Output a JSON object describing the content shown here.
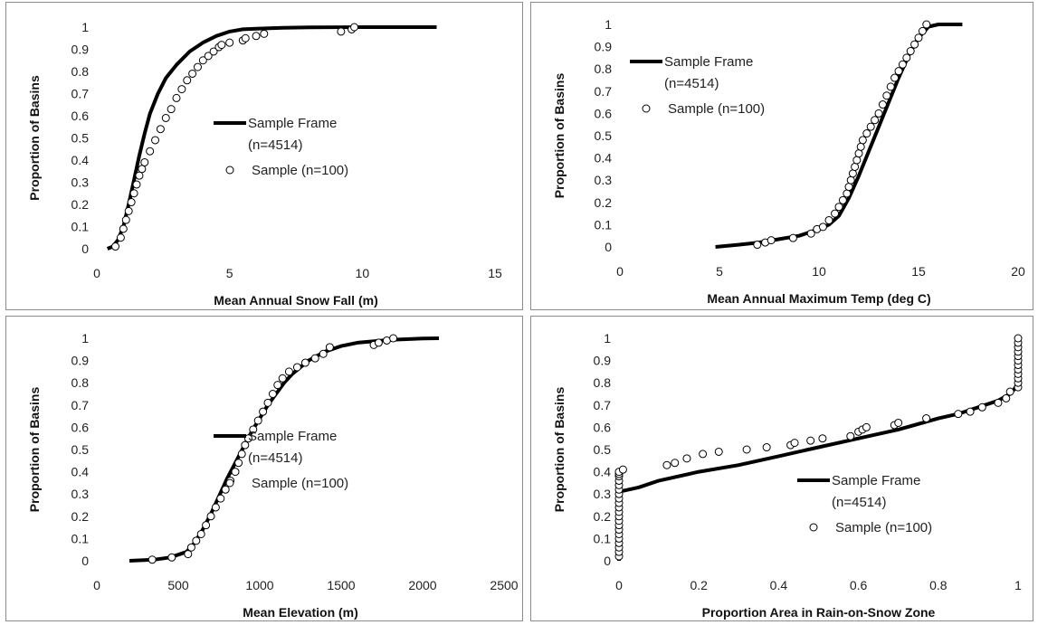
{
  "chart_data": [
    {
      "type": "line",
      "ylabel": "Proportion of Basins",
      "xlabel": "Mean Annual Snow Fall (m)",
      "xlim": [
        0,
        15
      ],
      "ylim": [
        0,
        1
      ],
      "xticks": [
        "0",
        "5",
        "10",
        "15"
      ],
      "yticks": [
        "0",
        "0.1",
        "0.2",
        "0.3",
        "0.4",
        "0.5",
        "0.6",
        "0.7",
        "0.8",
        "0.9",
        "1"
      ],
      "grid": false,
      "legend_position": "right-center",
      "series": [
        {
          "name": "Sample Frame (n=4514)",
          "legend_lines": [
            "Sample Frame",
            "(n=4514)"
          ],
          "style": "line",
          "x": [
            0.4,
            0.6,
            0.8,
            1.0,
            1.2,
            1.4,
            1.6,
            1.8,
            2.0,
            2.3,
            2.6,
            3.0,
            3.5,
            4.0,
            4.5,
            5.0,
            5.5,
            6.0,
            7.0,
            8.0,
            10.0,
            12.8
          ],
          "y": [
            0,
            0.01,
            0.04,
            0.1,
            0.2,
            0.31,
            0.42,
            0.52,
            0.61,
            0.7,
            0.77,
            0.83,
            0.89,
            0.93,
            0.96,
            0.98,
            0.99,
            0.993,
            0.997,
            0.999,
            1.0,
            1.0
          ]
        },
        {
          "name": "Sample (n=100)",
          "legend_lines": [
            "Sample (n=100)"
          ],
          "style": "markers",
          "x": [
            0.7,
            0.9,
            1.0,
            1.1,
            1.2,
            1.3,
            1.4,
            1.5,
            1.6,
            1.7,
            1.8,
            2.0,
            2.2,
            2.4,
            2.6,
            2.8,
            3.0,
            3.2,
            3.4,
            3.6,
            3.8,
            4.0,
            4.2,
            4.4,
            4.6,
            4.7,
            5.0,
            5.5,
            5.6,
            6.0,
            6.3,
            9.2,
            9.6,
            9.7
          ],
          "y": [
            0.01,
            0.05,
            0.09,
            0.13,
            0.17,
            0.21,
            0.25,
            0.29,
            0.33,
            0.36,
            0.39,
            0.44,
            0.49,
            0.54,
            0.59,
            0.63,
            0.68,
            0.72,
            0.76,
            0.79,
            0.82,
            0.85,
            0.87,
            0.89,
            0.91,
            0.92,
            0.93,
            0.94,
            0.95,
            0.96,
            0.97,
            0.98,
            0.99,
            1.0
          ]
        }
      ]
    },
    {
      "type": "line",
      "ylabel": "Proportion of Basins",
      "xlabel": "Mean Annual Maximum Temp (deg C)",
      "xlim": [
        0,
        20
      ],
      "ylim": [
        0,
        1
      ],
      "xticks": [
        "0",
        "5",
        "10",
        "15",
        "20"
      ],
      "yticks": [
        "0",
        "0.1",
        "0.2",
        "0.3",
        "0.4",
        "0.5",
        "0.6",
        "0.7",
        "0.8",
        "0.9",
        "1"
      ],
      "grid": false,
      "legend_position": "top-left",
      "series": [
        {
          "name": "Sample Frame (n=4514)",
          "legend_lines": [
            "Sample Frame",
            "(n=4514)"
          ],
          "style": "line",
          "x": [
            4.8,
            6.0,
            7.0,
            8.0,
            9.0,
            10.0,
            10.5,
            11.0,
            11.5,
            12.0,
            12.5,
            13.0,
            13.5,
            14.0,
            14.5,
            15.0,
            15.5,
            16.0,
            17.2
          ],
          "y": [
            0,
            0.01,
            0.02,
            0.035,
            0.05,
            0.08,
            0.1,
            0.14,
            0.22,
            0.32,
            0.43,
            0.54,
            0.65,
            0.76,
            0.86,
            0.94,
            0.99,
            1.0,
            1.0
          ]
        },
        {
          "name": "Sample (n=100)",
          "legend_lines": [
            "Sample (n=100)"
          ],
          "style": "markers",
          "x": [
            6.9,
            7.3,
            7.6,
            8.7,
            9.6,
            9.9,
            10.2,
            10.5,
            10.8,
            11.0,
            11.2,
            11.4,
            11.5,
            11.6,
            11.7,
            11.8,
            11.9,
            12.0,
            12.1,
            12.2,
            12.4,
            12.6,
            12.8,
            13.0,
            13.2,
            13.4,
            13.6,
            13.8,
            14.0,
            14.2,
            14.4,
            14.6,
            14.8,
            15.0,
            15.2,
            15.4
          ],
          "y": [
            0.01,
            0.02,
            0.03,
            0.04,
            0.06,
            0.08,
            0.09,
            0.12,
            0.15,
            0.18,
            0.21,
            0.24,
            0.27,
            0.3,
            0.33,
            0.36,
            0.39,
            0.42,
            0.45,
            0.48,
            0.51,
            0.54,
            0.57,
            0.6,
            0.64,
            0.68,
            0.72,
            0.76,
            0.79,
            0.82,
            0.85,
            0.88,
            0.91,
            0.94,
            0.97,
            1.0
          ]
        }
      ]
    },
    {
      "type": "line",
      "ylabel": "Proportion of Basins",
      "xlabel": "Mean Elevation (m)",
      "xlim": [
        0,
        2500
      ],
      "ylim": [
        0,
        1
      ],
      "xticks": [
        "0",
        "500",
        "1000",
        "1500",
        "2000",
        "2500"
      ],
      "yticks": [
        "0",
        "0.1",
        "0.2",
        "0.3",
        "0.4",
        "0.5",
        "0.6",
        "0.7",
        "0.8",
        "0.9",
        "1"
      ],
      "grid": false,
      "legend_position": "right-center",
      "series": [
        {
          "name": "Sample Frame (n=4514)",
          "legend_lines": [
            "Sample Frame",
            "(n=4514)"
          ],
          "style": "line",
          "x": [
            200,
            350,
            450,
            550,
            600,
            650,
            700,
            750,
            800,
            850,
            900,
            950,
            1000,
            1050,
            1100,
            1150,
            1200,
            1300,
            1400,
            1500,
            1600,
            1800,
            2000,
            2100
          ],
          "y": [
            0,
            0.005,
            0.015,
            0.04,
            0.08,
            0.14,
            0.21,
            0.29,
            0.37,
            0.44,
            0.51,
            0.58,
            0.64,
            0.7,
            0.75,
            0.8,
            0.84,
            0.9,
            0.94,
            0.965,
            0.98,
            0.993,
            0.999,
            1.0
          ]
        },
        {
          "name": "Sample (n=100)",
          "legend_lines": [
            "Sample (n=100)"
          ],
          "style": "markers",
          "x": [
            340,
            460,
            560,
            580,
            610,
            640,
            670,
            700,
            730,
            760,
            790,
            820,
            850,
            870,
            890,
            910,
            930,
            960,
            990,
            1020,
            1050,
            1080,
            1110,
            1140,
            1180,
            1230,
            1280,
            1340,
            1390,
            1430,
            1700,
            1730,
            1780,
            1820
          ],
          "y": [
            0.005,
            0.015,
            0.03,
            0.06,
            0.09,
            0.12,
            0.16,
            0.2,
            0.24,
            0.28,
            0.32,
            0.36,
            0.4,
            0.44,
            0.48,
            0.52,
            0.55,
            0.59,
            0.63,
            0.67,
            0.71,
            0.75,
            0.79,
            0.82,
            0.85,
            0.87,
            0.89,
            0.91,
            0.93,
            0.96,
            0.97,
            0.98,
            0.99,
            1.0
          ]
        }
      ]
    },
    {
      "type": "line",
      "ylabel": "Proportion of Basins",
      "xlabel": "Proportion Area in Rain-on-Snow Zone",
      "xlim": [
        0,
        1
      ],
      "ylim": [
        0,
        1
      ],
      "xticks": [
        "0",
        "0.2",
        "0.4",
        "0.6",
        "0.8",
        "1"
      ],
      "yticks": [
        "0",
        "0.1",
        "0.2",
        "0.3",
        "0.4",
        "0.5",
        "0.6",
        "0.7",
        "0.8",
        "0.9",
        "1"
      ],
      "grid": false,
      "legend_position": "right-center",
      "series": [
        {
          "name": "Sample Frame (n=4514)",
          "legend_lines": [
            "Sample Frame",
            "(n=4514)"
          ],
          "style": "line",
          "x": [
            0,
            0,
            0.05,
            0.1,
            0.2,
            0.3,
            0.4,
            0.5,
            0.6,
            0.7,
            0.8,
            0.85,
            0.9,
            0.95,
            0.98,
            0.99,
            1.0,
            1.0
          ],
          "y": [
            0,
            0.31,
            0.33,
            0.36,
            0.4,
            0.43,
            0.47,
            0.51,
            0.55,
            0.59,
            0.64,
            0.66,
            0.69,
            0.72,
            0.75,
            0.77,
            0.8,
            1.0
          ]
        },
        {
          "name": "Sample (n=100)",
          "legend_lines": [
            "Sample (n=100)"
          ],
          "style": "markers",
          "x": [
            0,
            0,
            0,
            0,
            0,
            0,
            0,
            0,
            0,
            0,
            0,
            0,
            0,
            0,
            0,
            0,
            0,
            0,
            0,
            0,
            0,
            0.01,
            0.12,
            0.14,
            0.17,
            0.21,
            0.25,
            0.32,
            0.37,
            0.43,
            0.44,
            0.48,
            0.51,
            0.58,
            0.6,
            0.61,
            0.62,
            0.69,
            0.7,
            0.77,
            0.85,
            0.88,
            0.91,
            0.95,
            0.97,
            0.98,
            1.0,
            1.0,
            1.0,
            1.0,
            1.0,
            1.0,
            1.0,
            1.0,
            1.0,
            1.0,
            1.0,
            1.0
          ],
          "y": [
            0.02,
            0.04,
            0.06,
            0.08,
            0.1,
            0.12,
            0.14,
            0.16,
            0.18,
            0.2,
            0.22,
            0.24,
            0.26,
            0.28,
            0.3,
            0.32,
            0.34,
            0.36,
            0.38,
            0.39,
            0.4,
            0.41,
            0.43,
            0.44,
            0.46,
            0.48,
            0.49,
            0.5,
            0.51,
            0.52,
            0.53,
            0.54,
            0.55,
            0.56,
            0.58,
            0.59,
            0.6,
            0.61,
            0.62,
            0.64,
            0.66,
            0.67,
            0.69,
            0.71,
            0.73,
            0.76,
            0.78,
            0.8,
            0.82,
            0.84,
            0.86,
            0.88,
            0.9,
            0.92,
            0.94,
            0.96,
            0.98,
            1.0
          ]
        }
      ]
    }
  ]
}
